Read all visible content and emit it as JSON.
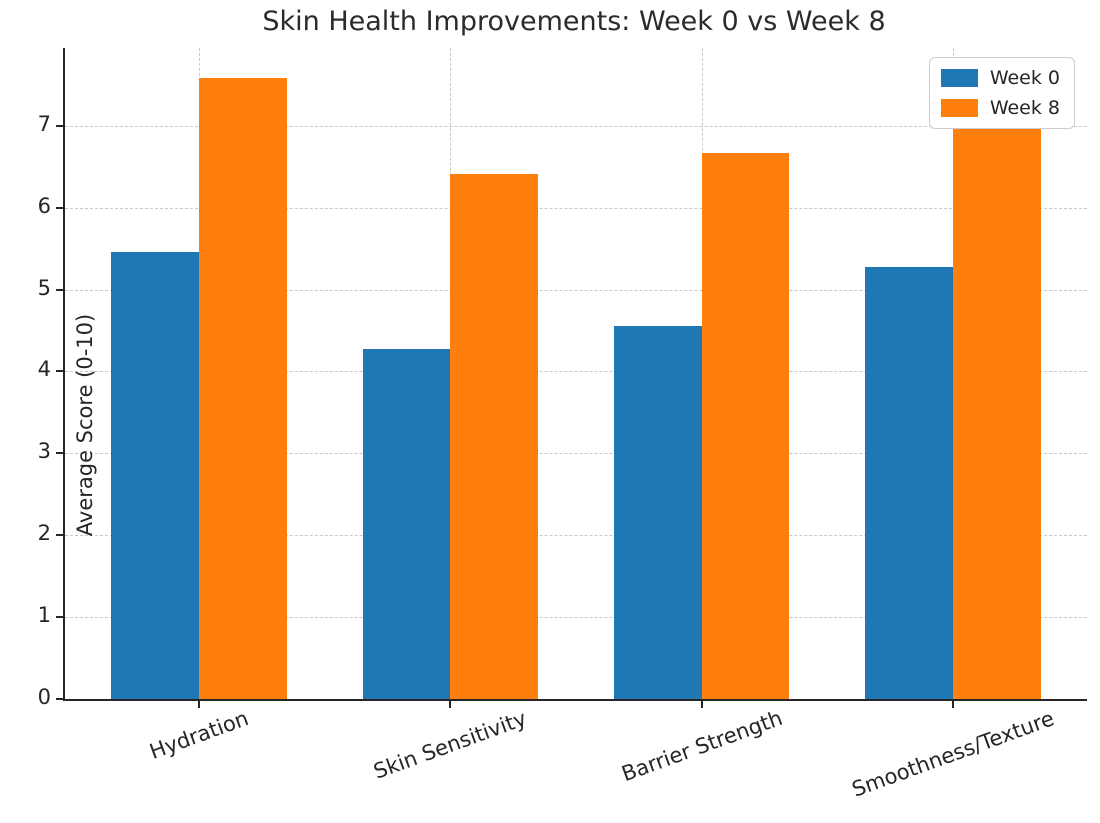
{
  "chart_data": {
    "type": "bar",
    "title": "Skin Health Improvements: Week 0 vs Week 8",
    "ylabel": "Average Score (0-10)",
    "xlabel": "",
    "categories": [
      "Hydration",
      "Skin Sensitivity",
      "Barrier Strength",
      "Smoothness/Texture"
    ],
    "series": [
      {
        "name": "Week 0",
        "color": "#1f77b4",
        "values": [
          5.46,
          4.28,
          4.55,
          5.27
        ]
      },
      {
        "name": "Week 8",
        "color": "#ff7f0e",
        "values": [
          7.58,
          6.41,
          6.67,
          6.98
        ]
      }
    ],
    "ylim": [
      0,
      7.95
    ],
    "yticks": [
      0,
      1,
      2,
      3,
      4,
      5,
      6,
      7
    ],
    "grid": "dashed, both axes, light gray",
    "legend_position": "upper right",
    "x_tick_rotation_deg": 20,
    "bar_width_fraction": 0.35
  }
}
